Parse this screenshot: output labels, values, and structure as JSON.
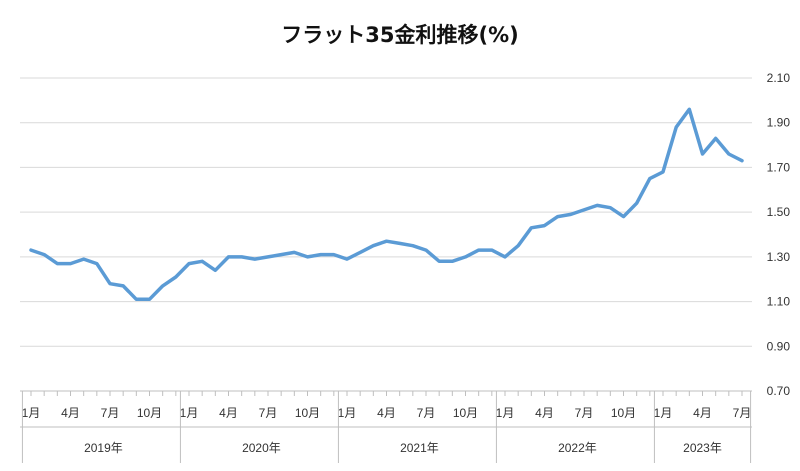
{
  "chart_data": {
    "type": "line",
    "title": "フラット35金利推移(%)",
    "xlabel": "",
    "ylabel": "",
    "ylim": [
      0.7,
      2.1
    ],
    "yticks": [
      "0.70",
      "0.90",
      "1.10",
      "1.30",
      "1.50",
      "1.70",
      "1.90",
      "2.10"
    ],
    "grid": true,
    "legend": "none",
    "line_color": "#5B9BD5",
    "month_tick_labels": [
      {
        "index": 0,
        "label": "1月"
      },
      {
        "index": 3,
        "label": "4月"
      },
      {
        "index": 6,
        "label": "7月"
      },
      {
        "index": 9,
        "label": "10月"
      },
      {
        "index": 12,
        "label": "1月"
      },
      {
        "index": 15,
        "label": "4月"
      },
      {
        "index": 18,
        "label": "7月"
      },
      {
        "index": 21,
        "label": "10月"
      },
      {
        "index": 24,
        "label": "1月"
      },
      {
        "index": 27,
        "label": "4月"
      },
      {
        "index": 30,
        "label": "7月"
      },
      {
        "index": 33,
        "label": "10月"
      },
      {
        "index": 36,
        "label": "1月"
      },
      {
        "index": 39,
        "label": "4月"
      },
      {
        "index": 42,
        "label": "7月"
      },
      {
        "index": 45,
        "label": "10月"
      },
      {
        "index": 48,
        "label": "1月"
      },
      {
        "index": 51,
        "label": "4月"
      },
      {
        "index": 54,
        "label": "7月"
      }
    ],
    "year_groups": [
      {
        "label": "2019年",
        "start": 0,
        "end": 11
      },
      {
        "label": "2020年",
        "start": 12,
        "end": 23
      },
      {
        "label": "2021年",
        "start": 24,
        "end": 35
      },
      {
        "label": "2022年",
        "start": 36,
        "end": 47
      },
      {
        "label": "2023年",
        "start": 48,
        "end": 54
      }
    ],
    "series": [
      {
        "values": [
          1.33,
          1.31,
          1.27,
          1.27,
          1.29,
          1.27,
          1.18,
          1.17,
          1.11,
          1.11,
          1.17,
          1.21,
          1.27,
          1.28,
          1.24,
          1.3,
          1.3,
          1.29,
          1.3,
          1.31,
          1.32,
          1.3,
          1.31,
          1.31,
          1.29,
          1.32,
          1.35,
          1.37,
          1.36,
          1.35,
          1.33,
          1.28,
          1.28,
          1.3,
          1.33,
          1.33,
          1.3,
          1.35,
          1.43,
          1.44,
          1.48,
          1.49,
          1.51,
          1.53,
          1.52,
          1.48,
          1.54,
          1.65,
          1.68,
          1.88,
          1.96,
          1.76,
          1.83,
          1.76,
          1.73
        ]
      }
    ]
  }
}
